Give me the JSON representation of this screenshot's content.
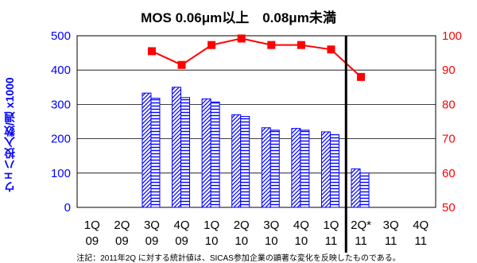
{
  "header": {
    "top_text": ""
  },
  "title": "MOS 0.06μm以上　0.08μm未満",
  "footnote": "注記：2011年2Q に対する統計値は、SICAS参加企業の顕著な変化を反映したものである。",
  "colors": {
    "bar_border": "#0000ff",
    "line": "#ff0000",
    "left_axis": "#0000ff",
    "right_axis": "#ff0000",
    "grid": "#000000"
  },
  "chart_data": {
    "type": "bar",
    "categories": [
      "1Q 09",
      "2Q 09",
      "3Q 09",
      "4Q 09",
      "1Q 10",
      "2Q 10",
      "3Q 10",
      "4Q 10",
      "1Q 11",
      "2Q* 11",
      "3Q 11",
      "4Q 11"
    ],
    "tick_top": [
      "1Q",
      "2Q",
      "3Q",
      "4Q",
      "1Q",
      "2Q",
      "3Q",
      "4Q",
      "1Q",
      "2Q*",
      "3Q",
      "4Q"
    ],
    "tick_bottom": [
      "09",
      "09",
      "09",
      "09",
      "10",
      "10",
      "10",
      "10",
      "11",
      "11",
      "11",
      "11"
    ],
    "series": [
      {
        "type": "bar",
        "axis": "left",
        "pattern": "diagonal",
        "values": [
          null,
          null,
          333,
          350,
          316,
          270,
          232,
          230,
          220,
          112,
          null,
          null
        ]
      },
      {
        "type": "bar",
        "axis": "left",
        "pattern": "horizontal",
        "values": [
          null,
          null,
          318,
          320,
          307,
          265,
          225,
          225,
          212,
          100,
          null,
          null
        ]
      },
      {
        "type": "line",
        "axis": "right",
        "marker": "square",
        "values": [
          null,
          null,
          95.5,
          91.5,
          97.3,
          99.2,
          97.3,
          97.3,
          96.0,
          88.0,
          null,
          null
        ]
      }
    ],
    "ylabel": "ウェハ投入数/週 x1000",
    "ylim": [
      0,
      500
    ],
    "yticks": [
      0,
      100,
      200,
      300,
      400,
      500
    ],
    "y2lim": [
      50,
      100
    ],
    "y2ticks": [
      50,
      60,
      70,
      80,
      90,
      100
    ],
    "divider_after_category": "1Q 11",
    "grid": true
  }
}
